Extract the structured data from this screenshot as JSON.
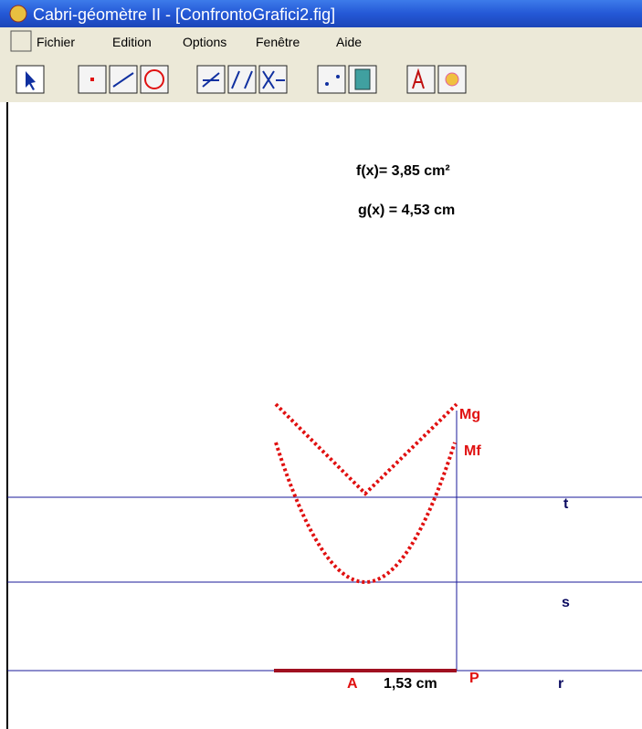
{
  "window": {
    "title": "Cabri-géomètre II - [ConfrontoGrafici2.fig]"
  },
  "menu": [
    "Fichier",
    "Edition",
    "Options",
    "Fenêtre",
    "Aide"
  ],
  "canvas": {
    "measure_f": "f(x)= 3,85  cm²",
    "measure_g": "g(x) = 4,53  cm",
    "lines": [
      "t",
      "s",
      "r"
    ],
    "points": [
      "Mg",
      "Mf",
      "P",
      "A"
    ],
    "segment_length": "1,53  cm"
  }
}
